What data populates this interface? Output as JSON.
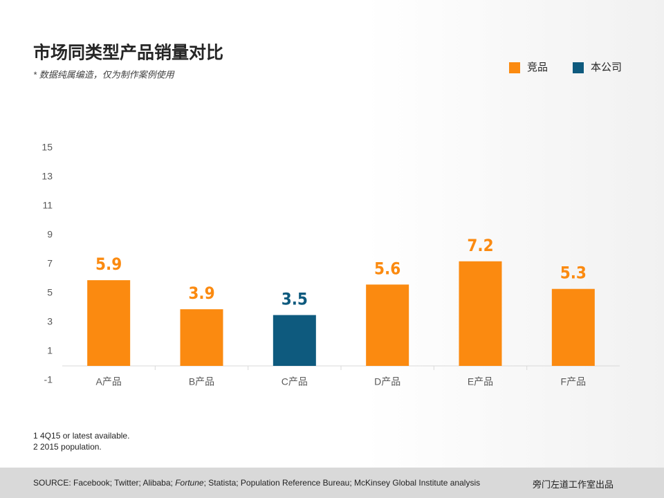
{
  "chart_data": {
    "type": "bar",
    "title": "市场同类型产品销量对比",
    "subtitle": "* 数据纯属编造，仅为制作案例使用",
    "categories": [
      "A产品",
      "B产品",
      "C产品",
      "D产品",
      "E产品",
      "F产品"
    ],
    "series": [
      {
        "name": "竞品",
        "color": "#fb8a10",
        "values": [
          5.9,
          3.9,
          null,
          5.6,
          7.2,
          5.3
        ]
      },
      {
        "name": "本公司",
        "color": "#0e5a7e",
        "values": [
          null,
          null,
          3.5,
          null,
          null,
          null
        ]
      }
    ],
    "ylim": [
      -1,
      15
    ],
    "yticks": [
      -1,
      1,
      3,
      5,
      7,
      9,
      11,
      13,
      15
    ],
    "grid": false,
    "legend": "top-right",
    "notes": [
      "1 4Q15 or latest available.",
      "2 2015 population."
    ],
    "source": [
      "SOURCE: Facebook; Twitter; Alibaba; ",
      "Fortune",
      "; Statista; Population Reference Bureau; McKinsey Global Institute analysis"
    ],
    "credit": "旁门左道工作室出品"
  }
}
